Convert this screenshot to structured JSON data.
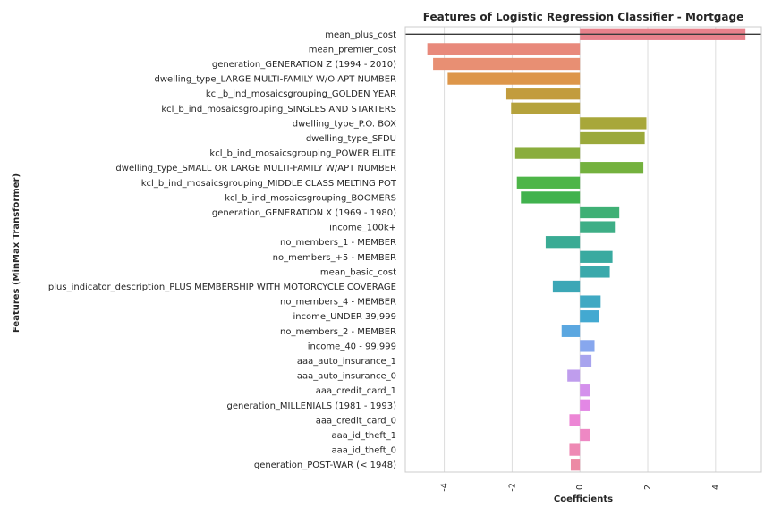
{
  "chart_data": {
    "type": "bar",
    "orientation": "horizontal",
    "title": "Features of Logistic Regression Classifier - Mortgage",
    "xlabel": "Coefficients",
    "ylabel": "Features (MinMax Transformer)",
    "xlim": [
      -5.15,
      5.35
    ],
    "xticks": [
      -4,
      -2,
      0,
      2,
      4
    ],
    "xtick_labels": [
      "-4",
      "-2",
      "0",
      "2",
      "4"
    ],
    "grid": "vertical",
    "categories": [
      "mean_plus_cost",
      "mean_premier_cost",
      "generation_GENERATION Z (1994 - 2010)",
      "dwelling_type_LARGE MULTI-FAMILY W/O APT NUMBER",
      "kcl_b_ind_mosaicsgrouping_GOLDEN YEAR",
      "kcl_b_ind_mosaicsgrouping_SINGLES AND STARTERS",
      "dwelling_type_P.O. BOX",
      "dwelling_type_SFDU",
      "kcl_b_ind_mosaicsgrouping_POWER ELITE",
      "dwelling_type_SMALL OR LARGE MULTI-FAMILY W/APT NUMBER",
      "kcl_b_ind_mosaicsgrouping_MIDDLE CLASS MELTING POT",
      "kcl_b_ind_mosaicsgrouping_BOOMERS",
      "generation_GENERATION X (1969 - 1980)",
      "income_100k+",
      "no_members_1 - MEMBER",
      "no_members_+5 - MEMBER",
      "mean_basic_cost",
      "plus_indicator_description_PLUS MEMBERSHIP WITH MOTORCYCLE COVERAGE",
      "no_members_4 - MEMBER",
      "income_UNDER 39,999",
      "no_members_2 - MEMBER",
      "income_40 - 99,999",
      "aaa_auto_insurance_1",
      "aaa_auto_insurance_0",
      "aaa_credit_card_1",
      "generation_MILLENIALS (1981 - 1993)",
      "aaa_credit_card_0",
      "aaa_id_theft_1",
      "aaa_id_theft_0",
      "generation_POST-WAR (< 1948)"
    ],
    "values": [
      4.88,
      -4.5,
      -4.33,
      -3.9,
      -2.17,
      -2.03,
      1.96,
      1.91,
      -1.91,
      1.87,
      -1.86,
      -1.74,
      1.16,
      1.03,
      -1.01,
      0.96,
      0.88,
      -0.8,
      0.61,
      0.56,
      -0.54,
      0.43,
      0.34,
      -0.37,
      0.31,
      0.3,
      -0.31,
      0.29,
      -0.31,
      -0.27
    ],
    "colors": [
      "#e8818b",
      "#e8897b",
      "#e88f73",
      "#dd964a",
      "#c29c3d",
      "#b5a23c",
      "#a8a73a",
      "#9ba93b",
      "#8aad3d",
      "#74b13e",
      "#4db548",
      "#41b24e",
      "#3fb075",
      "#3eae86",
      "#3aab94",
      "#39aaa0",
      "#3aa9ab",
      "#3ca7b6",
      "#40a9c3",
      "#43a9d1",
      "#5ba7e0",
      "#87a7ee",
      "#a8a4ee",
      "#bf9ded",
      "#d490ec",
      "#e387e5",
      "#ec86d5",
      "#ee88c4",
      "#ee89b4",
      "#ec8aa4"
    ],
    "zero_reference_line": 0
  }
}
